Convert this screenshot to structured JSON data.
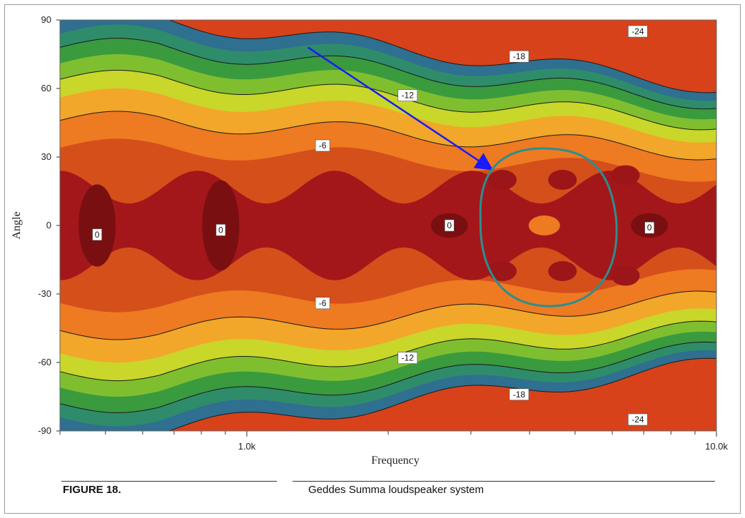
{
  "figure": {
    "label": "FIGURE 18.",
    "caption": "Geddes Summa loudspeaker system"
  },
  "chart_data": {
    "type": "heatmap",
    "title": "",
    "xlabel": "Frequency",
    "ylabel": "Angle",
    "x_scale": "log",
    "xlim": [
      400,
      10000
    ],
    "ylim": [
      -90,
      90
    ],
    "x_ticks": [
      {
        "value": 1000,
        "label": "1.0k"
      },
      {
        "value": 10000,
        "label": "10.0k"
      }
    ],
    "y_ticks": [
      {
        "value": 90,
        "label": "90"
      },
      {
        "value": 60,
        "label": "60"
      },
      {
        "value": 30,
        "label": "30"
      },
      {
        "value": 0,
        "label": "0"
      },
      {
        "value": -30,
        "label": "-30"
      },
      {
        "value": -60,
        "label": "-60"
      },
      {
        "value": -90,
        "label": "-90"
      }
    ],
    "color_scale": "red (0 dB) → orange → yellow → green → blue (-24 dB)",
    "contour_levels": [
      0,
      -6,
      -12,
      -18,
      -24
    ],
    "contour_labels": [
      {
        "text": "0",
        "freq": 480,
        "angle": -4
      },
      {
        "text": "0",
        "freq": 880,
        "angle": -2
      },
      {
        "text": "0",
        "freq": 2700,
        "angle": 0
      },
      {
        "text": "0",
        "freq": 7200,
        "angle": -1
      },
      {
        "text": "-6",
        "freq": 1450,
        "angle": 35
      },
      {
        "text": "-6",
        "freq": 1450,
        "angle": -34
      },
      {
        "text": "-12",
        "freq": 2200,
        "angle": 57
      },
      {
        "text": "-12",
        "freq": 2200,
        "angle": -58
      },
      {
        "text": "-18",
        "freq": 3800,
        "angle": 74
      },
      {
        "text": "-18",
        "freq": 3800,
        "angle": -74
      },
      {
        "text": "-24",
        "freq": 6800,
        "angle": 85
      },
      {
        "text": "-24",
        "freq": 6800,
        "angle": -85
      }
    ],
    "annotations": [
      {
        "type": "arrow",
        "color": "#1a1aff",
        "from": {
          "freq": 1350,
          "angle": 78
        },
        "to": {
          "freq": 3300,
          "angle": 25
        }
      },
      {
        "type": "ellipse",
        "color": "#2a8f8f",
        "center": {
          "freq": 4400,
          "angle": 0
        },
        "description": "highlighted region"
      }
    ]
  }
}
